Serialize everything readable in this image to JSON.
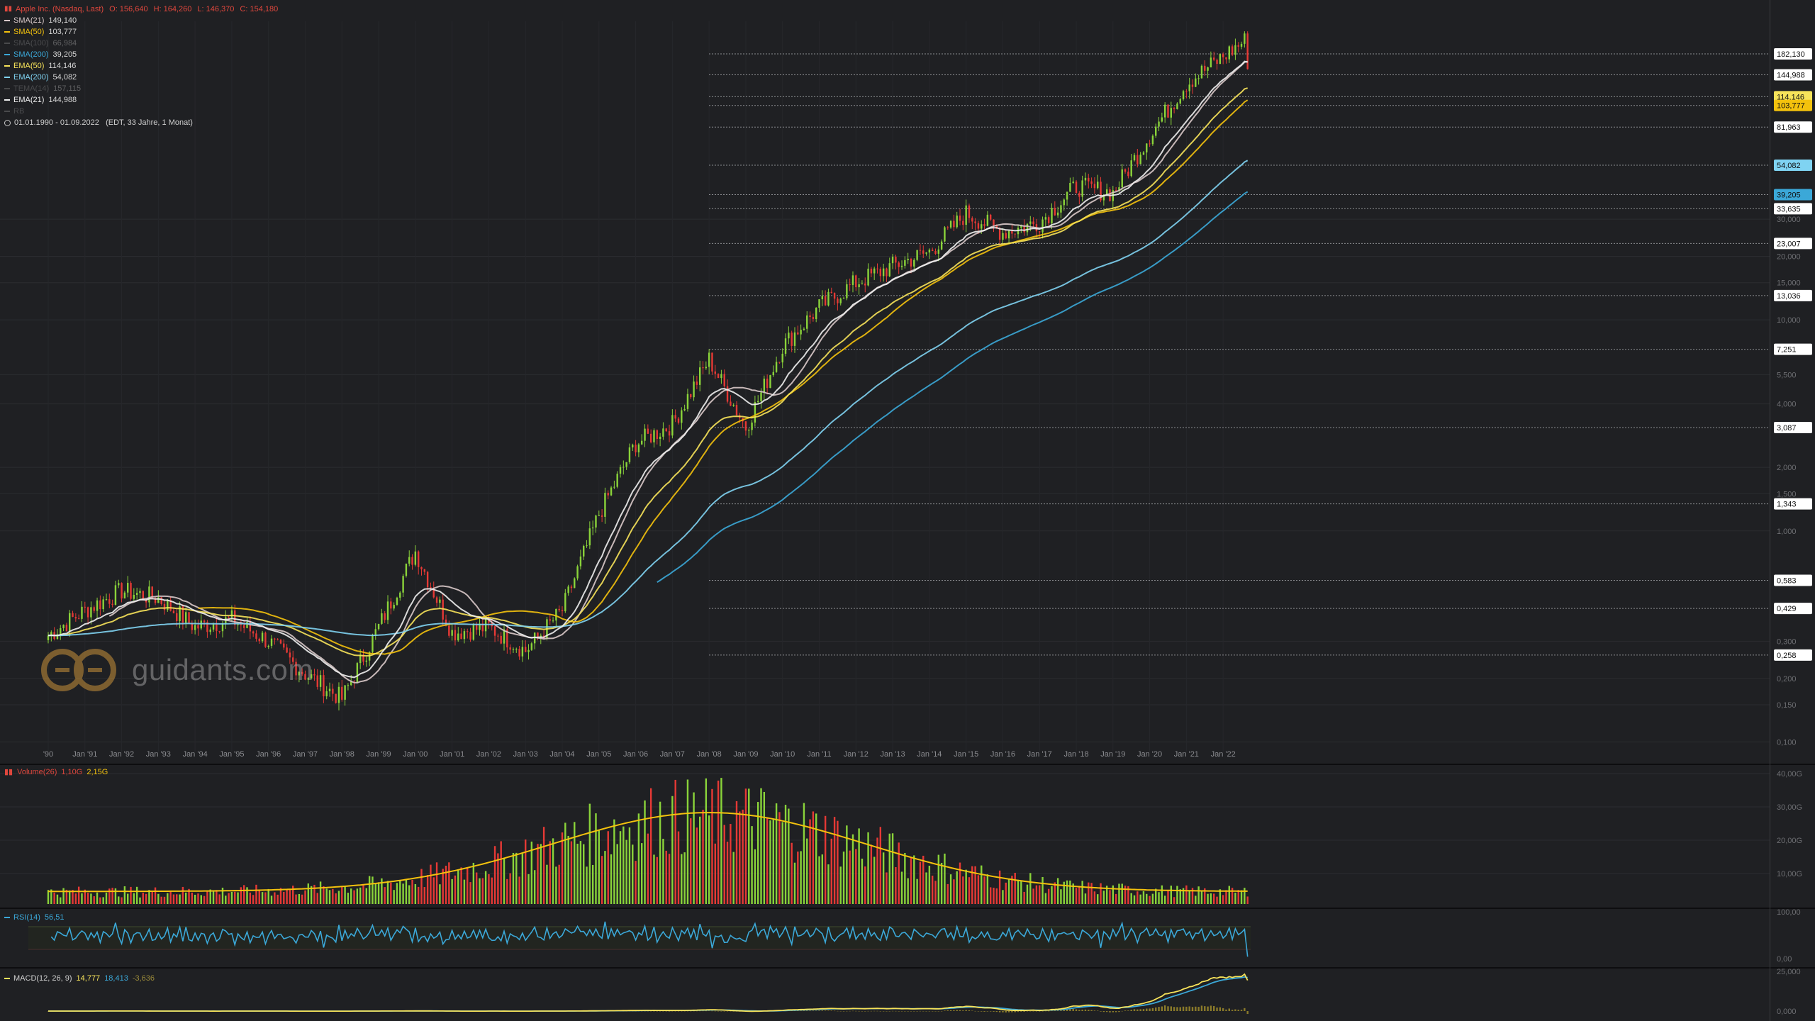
{
  "header": {
    "instrument": "Apple Inc. (Nasdaq, Last)",
    "open": "O: 156,640",
    "high": "H: 164,260",
    "low": "L: 146,370",
    "close": "C: 154,180",
    "range": "01.01.1990 - 01.09.2022",
    "range_info": "(EDT, 33 Jahre, 1 Monat)"
  },
  "indicators": [
    {
      "label": "SMA(21)",
      "value": "149,140",
      "color": "#d9c9c9"
    },
    {
      "label": "SMA(50)",
      "value": "103,777",
      "color": "#f4c20d"
    },
    {
      "label": "SMA(100)",
      "value": "66,984",
      "color": "#999999",
      "dim": true
    },
    {
      "label": "SMA(200)",
      "value": "39,205",
      "color": "#3ba8d8"
    },
    {
      "label": "EMA(50)",
      "value": "114,146",
      "color": "#f7e35a"
    },
    {
      "label": "EMA(200)",
      "value": "54,082",
      "color": "#7fd3f2"
    },
    {
      "label": "TEMA(14)",
      "value": "157,115",
      "color": "#999999",
      "dim": true
    },
    {
      "label": "EMA(21)",
      "value": "144,988",
      "color": "#eeeeee"
    },
    {
      "label": "RB",
      "value": "",
      "color": "#999999",
      "dim": true
    }
  ],
  "watermark": "guidants.com",
  "price_axis_ticks": [
    "30,000",
    "20,000",
    "15,000",
    "10,000",
    "5,500",
    "4,000",
    "2,000",
    "1,500",
    "1,000",
    "0,300",
    "0,200",
    "0,150",
    "0,100"
  ],
  "price_markers": [
    {
      "text": "182,130",
      "bg": "#ffffff",
      "fg": "#111111"
    },
    {
      "text": "144,988",
      "bg": "#ffffff",
      "fg": "#111111"
    },
    {
      "text": "114,146",
      "bg": "#f7e35a",
      "fg": "#111111"
    },
    {
      "text": "103,777",
      "bg": "#f4c20d",
      "fg": "#111111"
    },
    {
      "text": "81,963",
      "bg": "#ffffff",
      "fg": "#111111"
    },
    {
      "text": "54,082",
      "bg": "#7fd3f2",
      "fg": "#111111"
    },
    {
      "text": "39,205",
      "bg": "#3ba8d8",
      "fg": "#111111"
    },
    {
      "text": "33,635",
      "bg": "#ffffff",
      "fg": "#111111"
    },
    {
      "text": "23,007",
      "bg": "#ffffff",
      "fg": "#111111"
    },
    {
      "text": "13,036",
      "bg": "#ffffff",
      "fg": "#111111"
    },
    {
      "text": "7,251",
      "bg": "#ffffff",
      "fg": "#111111"
    },
    {
      "text": "3,087",
      "bg": "#ffffff",
      "fg": "#111111"
    },
    {
      "text": "1,343",
      "bg": "#ffffff",
      "fg": "#111111"
    },
    {
      "text": "0,583",
      "bg": "#ffffff",
      "fg": "#111111"
    },
    {
      "text": "0,429",
      "bg": "#ffffff",
      "fg": "#111111"
    },
    {
      "text": "0,258",
      "bg": "#ffffff",
      "fg": "#111111"
    }
  ],
  "x_axis_labels": [
    "'90",
    "Jan '91",
    "Jan '92",
    "Jan '93",
    "Jan '94",
    "Jan '95",
    "Jan '96",
    "Jan '97",
    "Jan '98",
    "Jan '99",
    "Jan '00",
    "Jan '01",
    "Jan '02",
    "Jan '03",
    "Jan '04",
    "Jan '05",
    "Jan '06",
    "Jan '07",
    "Jan '08",
    "Jan '09",
    "Jan '10",
    "Jan '11",
    "Jan '12",
    "Jan '13",
    "Jan '14",
    "Jan '15",
    "Jan '16",
    "Jan '17",
    "Jan '18",
    "Jan '19",
    "Jan '20",
    "Jan '21",
    "Jan '22"
  ],
  "volume_panel": {
    "label": "Volume(26)",
    "value1": "1,10G",
    "value2": "2,15G",
    "ticks": [
      "40,00G",
      "30,00G",
      "20,00G",
      "10,00G"
    ]
  },
  "rsi_panel": {
    "label": "RSI(14)",
    "value": "56,51",
    "ticks": [
      "100,00",
      "0,00"
    ]
  },
  "macd_panel": {
    "label": "MACD(12, 26, 9)",
    "value1": "14,777",
    "value2": "18,413",
    "value3": "-3,636",
    "ticks": [
      "25,000",
      "0,000"
    ]
  },
  "colors": {
    "up": "#8ad33a",
    "down": "#e53935",
    "accent": "#e0473d"
  },
  "chart_data": {
    "type": "candlestick",
    "title": "Apple Inc. (Nasdaq, Last)",
    "scale": "log",
    "interval": "1 Monat",
    "ylim": [
      0.09,
      260
    ],
    "yticks": [
      0.1,
      0.15,
      0.2,
      0.3,
      1,
      1.5,
      2,
      4,
      5.5,
      10,
      15,
      20,
      30
    ],
    "x_start": "1990-01",
    "x_end": "2022-09",
    "close_yearly": {
      "1990": 0.32,
      "1991": 0.42,
      "1992": 0.52,
      "1993": 0.48,
      "1994": 0.35,
      "1995": 0.38,
      "1996": 0.3,
      "1997": 0.21,
      "1998": 0.16,
      "1999": 0.35,
      "2000": 0.8,
      "2001": 0.33,
      "2002": 0.35,
      "2003": 0.27,
      "2004": 0.42,
      "2005": 1.2,
      "2006": 2.6,
      "2007": 3.2,
      "2008": 6.5,
      "2009": 3.1,
      "2010": 7.5,
      "2011": 11.5,
      "2012": 15.0,
      "2013": 18.0,
      "2014": 21.0,
      "2015": 32.0,
      "2016": 26.0,
      "2017": 29.0,
      "2018": 43.0,
      "2019": 40.0,
      "2020": 75.0,
      "2021": 132.0,
      "2022": 177.0
    },
    "last": {
      "open": 156.64,
      "high": 164.26,
      "low": 146.37,
      "close": 154.18
    }
  }
}
